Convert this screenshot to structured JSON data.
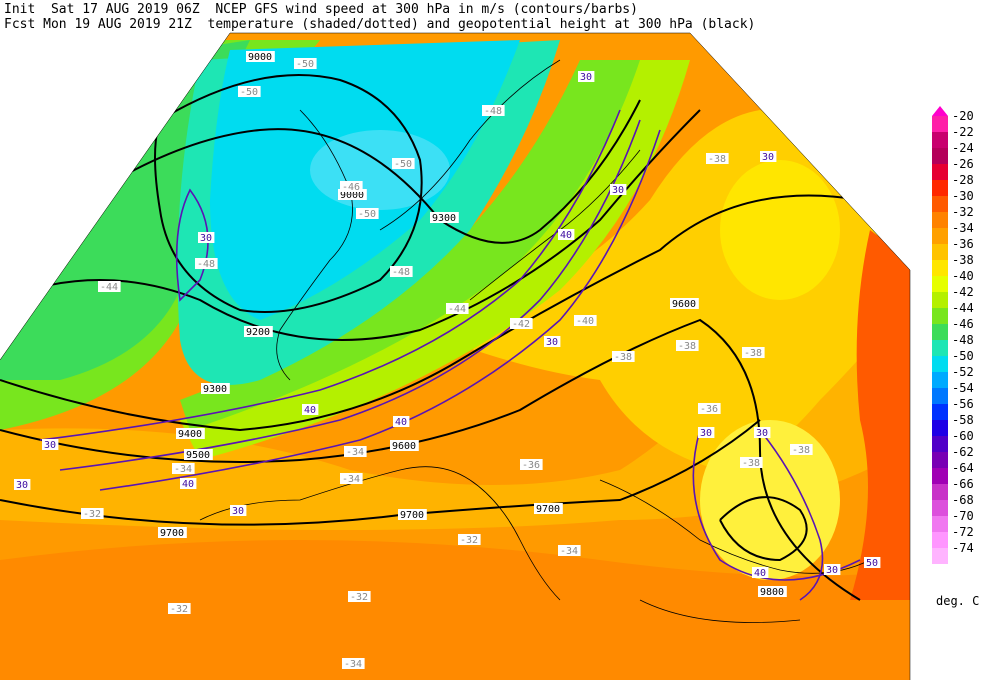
{
  "header": {
    "line1": "Init  Sat 17 AUG 2019 06Z  NCEP GFS wind speed at 300 hPa in m/s (contours/barbs)",
    "line2": "Fcst Mon 19 AUG 2019 21Z  temperature (shaded/dotted) and geopotential height at 300 hPa (black)"
  },
  "colorbar": {
    "units": "deg. C",
    "entries": [
      {
        "label": "-20",
        "color": "#ff1fa8"
      },
      {
        "label": "-22",
        "color": "#c8006e"
      },
      {
        "label": "-24",
        "color": "#b4005a"
      },
      {
        "label": "-26",
        "color": "#e60032"
      },
      {
        "label": "-28",
        "color": "#ff2800"
      },
      {
        "label": "-30",
        "color": "#ff5a00"
      },
      {
        "label": "-32",
        "color": "#ff8200"
      },
      {
        "label": "-34",
        "color": "#ffa000"
      },
      {
        "label": "-36",
        "color": "#ffc300"
      },
      {
        "label": "-38",
        "color": "#ffe600"
      },
      {
        "label": "-40",
        "color": "#e6ff00"
      },
      {
        "label": "-42",
        "color": "#b4f000"
      },
      {
        "label": "-44",
        "color": "#78e61e"
      },
      {
        "label": "-46",
        "color": "#3cdc5a"
      },
      {
        "label": "-48",
        "color": "#1ee6b4"
      },
      {
        "label": "-50",
        "color": "#00dcf0"
      },
      {
        "label": "-52",
        "color": "#00aaff"
      },
      {
        "label": "-54",
        "color": "#0078ff"
      },
      {
        "label": "-56",
        "color": "#0032ff"
      },
      {
        "label": "-58",
        "color": "#1e00e6"
      },
      {
        "label": "-60",
        "color": "#5000c8"
      },
      {
        "label": "-62",
        "color": "#7800b4"
      },
      {
        "label": "-64",
        "color": "#a000b4"
      },
      {
        "label": "-66",
        "color": "#c832c8"
      },
      {
        "label": "-68",
        "color": "#dc50dc"
      },
      {
        "label": "-70",
        "color": "#f078f0"
      },
      {
        "label": "-72",
        "color": "#ff96ff"
      },
      {
        "label": "-74",
        "color": "#ffb4ff"
      }
    ]
  },
  "map_labels": {
    "height": [
      "9000",
      "9000",
      "9200",
      "9300",
      "9400",
      "9500",
      "9600",
      "9600",
      "9700",
      "9700",
      "9700",
      "9800",
      "9300"
    ],
    "wind": [
      "30",
      "30",
      "30",
      "30",
      "30",
      "30",
      "30",
      "40",
      "40",
      "40",
      "40",
      "40",
      "50",
      "30",
      "30",
      "30",
      "30"
    ],
    "temp": [
      "-50",
      "-50",
      "-50",
      "-50",
      "-48",
      "-48",
      "-48",
      "-44",
      "-46",
      "-44",
      "-42",
      "-40",
      "-38",
      "-38",
      "-38",
      "-38",
      "-36",
      "-38",
      "-38",
      "-34",
      "-34",
      "-34",
      "-36",
      "-34",
      "-32",
      "-32",
      "-32",
      "-32",
      "-34"
    ]
  }
}
